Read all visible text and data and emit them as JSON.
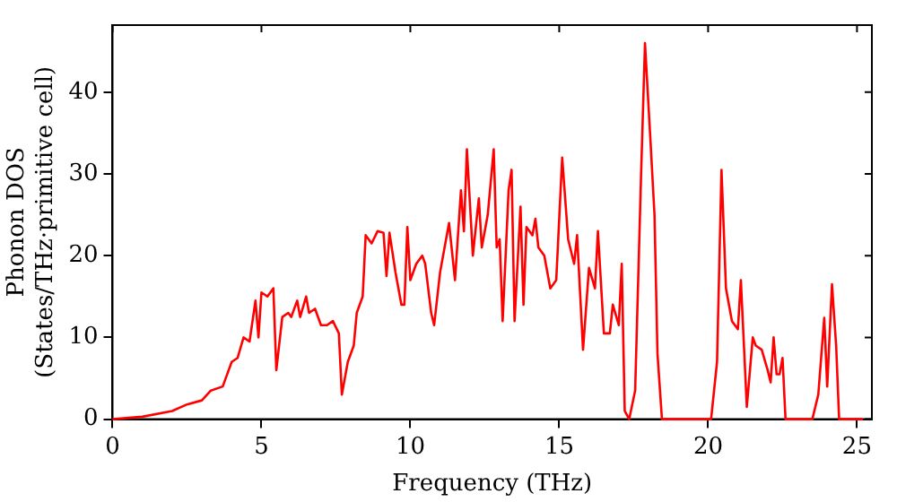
{
  "chart_data": {
    "type": "line",
    "xlabel": "Frequency (THz)",
    "ylabel": "Phonon DOS\n(States/THz·primitive cell)",
    "xlim": [
      0,
      25.5
    ],
    "ylim": [
      0,
      48.2
    ],
    "xticks": [
      0,
      5,
      10,
      15,
      20,
      25
    ],
    "yticks": [
      0,
      10,
      20,
      30,
      40
    ],
    "grid": false,
    "legend": false,
    "marker": "none",
    "line_style": "solid",
    "series": [
      {
        "color": "#ff0000",
        "x": [
          0,
          1,
          2,
          2.5,
          3,
          3.3,
          3.7,
          4,
          4.2,
          4.4,
          4.6,
          4.8,
          4.9,
          5,
          5.2,
          5.4,
          5.5,
          5.7,
          5.9,
          6,
          6.2,
          6.3,
          6.5,
          6.6,
          6.8,
          7,
          7.2,
          7.4,
          7.6,
          7.7,
          7.9,
          8.1,
          8.2,
          8.4,
          8.5,
          8.7,
          8.9,
          9.1,
          9.2,
          9.3,
          9.5,
          9.7,
          9.8,
          9.9,
          10,
          10.2,
          10.4,
          10.5,
          10.7,
          10.8,
          11,
          11.2,
          11.3,
          11.5,
          11.7,
          11.8,
          11.9,
          12.1,
          12.3,
          12.4,
          12.6,
          12.8,
          12.9,
          13,
          13.1,
          13.3,
          13.4,
          13.5,
          13.7,
          13.8,
          13.9,
          14.1,
          14.2,
          14.3,
          14.5,
          14.7,
          14.9,
          15.1,
          15.3,
          15.5,
          15.6,
          15.8,
          16,
          16.2,
          16.3,
          16.5,
          16.7,
          16.8,
          17,
          17.1,
          17.2,
          17.35,
          17.55,
          17.75,
          17.88,
          18.05,
          18.2,
          18.3,
          18.45,
          20.1,
          20.3,
          20.45,
          20.6,
          20.8,
          21,
          21.1,
          21.3,
          21.5,
          21.6,
          21.8,
          22,
          22.1,
          22.2,
          22.3,
          22.4,
          22.5,
          22.6,
          22.7,
          23.5,
          23.7,
          23.9,
          24,
          24.16,
          24.3,
          24.4,
          25.2
        ],
        "values": [
          0,
          0.3,
          1,
          1.8,
          2.3,
          3.5,
          4,
          7,
          7.5,
          10,
          9.5,
          14.5,
          10,
          15.5,
          15,
          16,
          6,
          12.5,
          13,
          12.5,
          14.5,
          12.5,
          15,
          13,
          13.5,
          11.5,
          11.5,
          12,
          10.5,
          3,
          7,
          9,
          13,
          15,
          22.5,
          21.5,
          23,
          22.8,
          17.5,
          22.8,
          18,
          14,
          14,
          23.5,
          17,
          19,
          20,
          19,
          13,
          11.5,
          18,
          22,
          24,
          17,
          28,
          23,
          33,
          20,
          27,
          21,
          25,
          33,
          21,
          22,
          12,
          28,
          30.5,
          12,
          26,
          14,
          23.5,
          22.5,
          24.5,
          21,
          20,
          16,
          17,
          32,
          22,
          19,
          22.5,
          8.5,
          18.5,
          16,
          23,
          10.5,
          10.5,
          14,
          11.5,
          19,
          1,
          0,
          3.5,
          30,
          46,
          35,
          25,
          8,
          0,
          0,
          7,
          30.5,
          16,
          12,
          11,
          17,
          1.5,
          10,
          9,
          8.5,
          6,
          4.5,
          10,
          5.5,
          5.5,
          7.5,
          0,
          0,
          0,
          3,
          12.4,
          4,
          16.5,
          9,
          0,
          0
        ]
      }
    ]
  }
}
